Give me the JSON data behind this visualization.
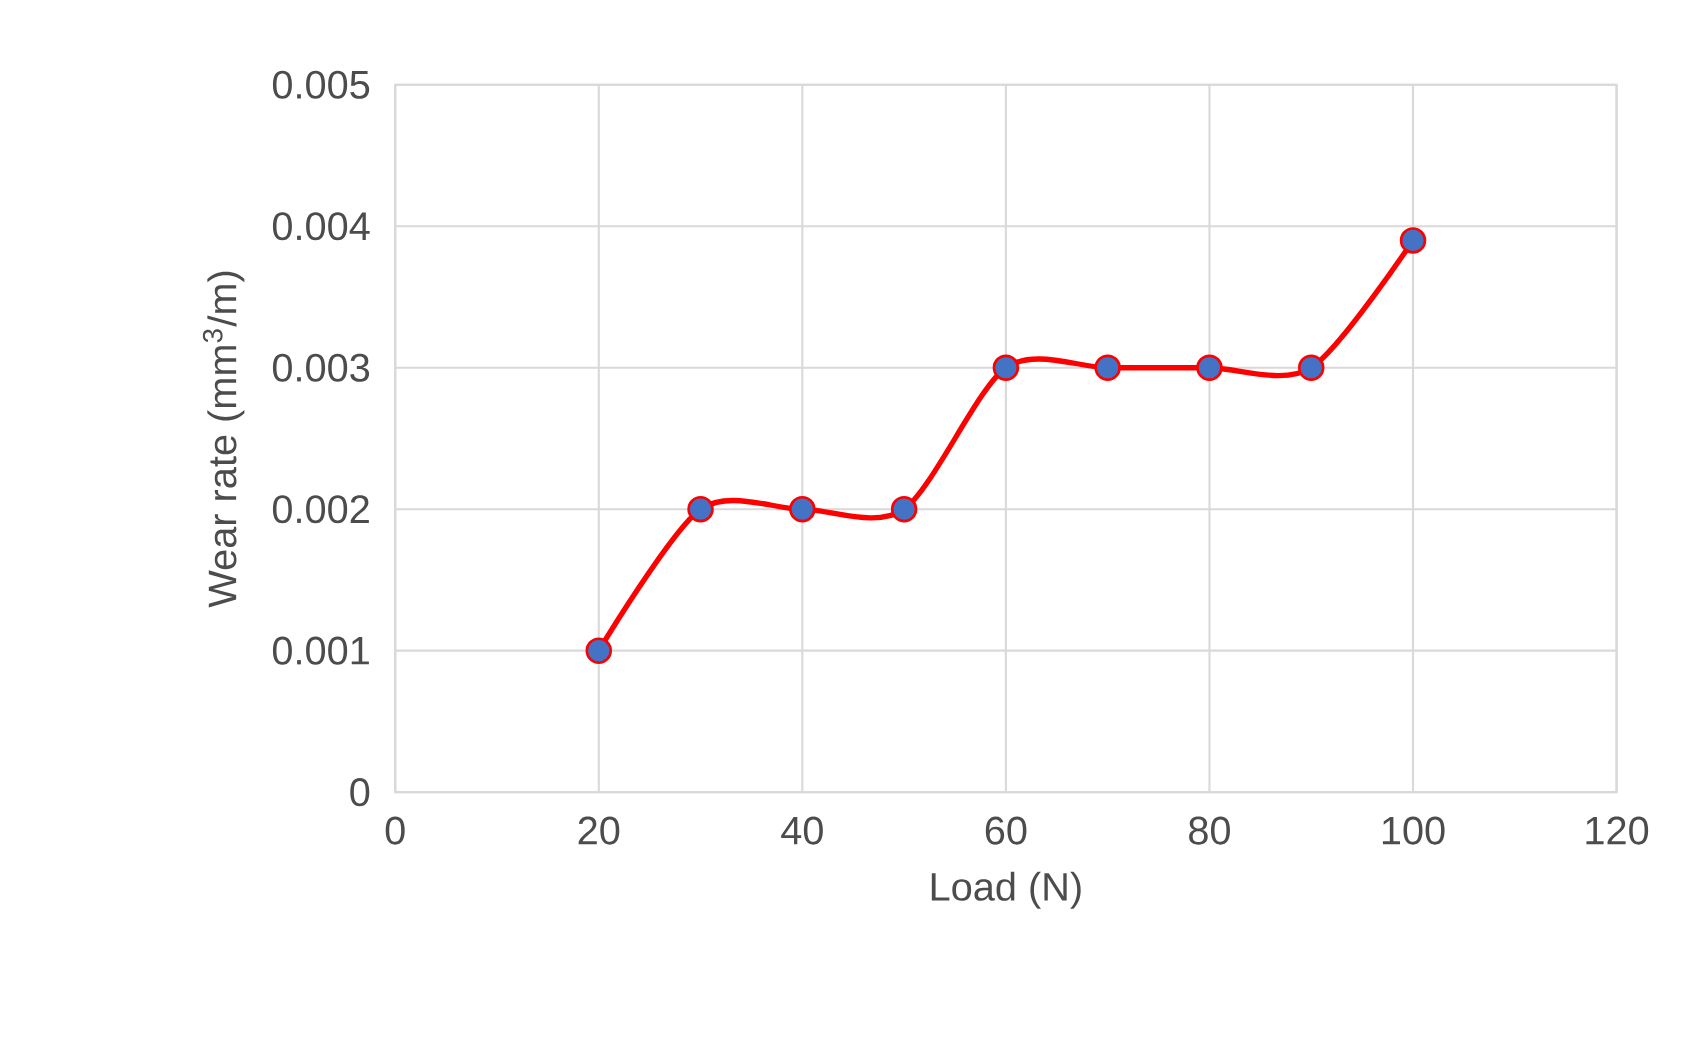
{
  "chart_data": {
    "type": "line",
    "xlabel": "Load (N)",
    "ylabel": "Wear rate (mm$^{3}$/m)",
    "x": [
      20,
      30,
      40,
      50,
      60,
      70,
      80,
      90,
      100
    ],
    "series": [
      {
        "color": "#ff0000",
        "values": [
          0.001,
          0.002,
          0.002,
          0.002,
          0.003,
          0.003,
          0.003,
          0.003,
          0.0039
        ]
      }
    ],
    "marker": "circle",
    "line_style": "solid",
    "grid": true,
    "xlim": [
      0,
      120
    ],
    "xticks": [
      0,
      20,
      40,
      60,
      80,
      100,
      120
    ],
    "ylim": [
      0,
      0.005
    ],
    "yticks": [
      0,
      0.001,
      0.002,
      0.003,
      0.004,
      0.005
    ]
  }
}
